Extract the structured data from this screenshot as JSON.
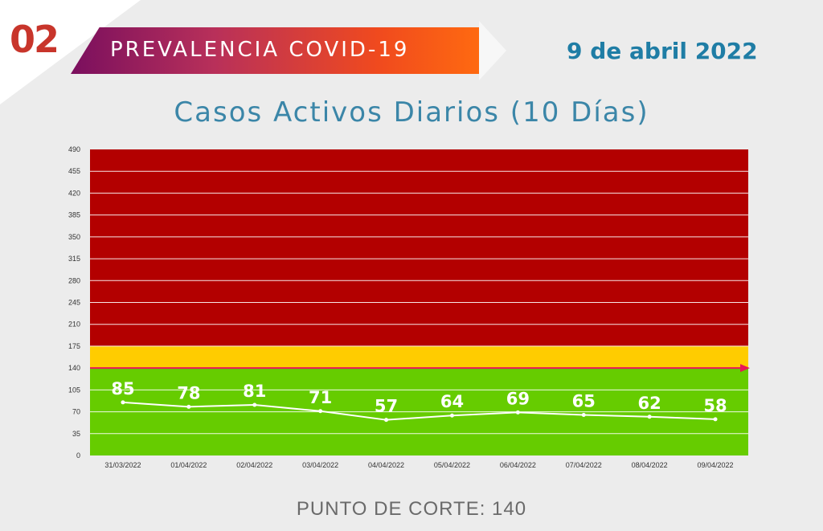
{
  "header": {
    "section_number": "02",
    "section_title": "PREVALENCIA COVID-19",
    "date": "9 de abril 2022"
  },
  "colors": {
    "section_number": "#c8352b",
    "date": "#1f7da5",
    "title": "#3b86a8",
    "red_zone": "#b30000",
    "yellow_zone": "#ffcc00",
    "green_zone": "#66cc00",
    "cutoff_line": "#e8155a",
    "series_line": "#ffffff",
    "footer_text": "#6a6a6a"
  },
  "chart_data": {
    "type": "line",
    "title": "Casos Activos Diarios (10 Días)",
    "xlabel": "",
    "ylabel": "",
    "ylim": [
      0,
      490
    ],
    "yticks": [
      0,
      35,
      70,
      105,
      140,
      175,
      210,
      245,
      280,
      315,
      350,
      385,
      420,
      455,
      490
    ],
    "categories": [
      "31/03/2022",
      "01/04/2022",
      "02/04/2022",
      "03/04/2022",
      "04/04/2022",
      "05/04/2022",
      "06/04/2022",
      "07/04/2022",
      "08/04/2022",
      "09/04/2022"
    ],
    "series": [
      {
        "values": [
          85,
          78,
          81,
          71,
          57,
          64,
          69,
          65,
          62,
          58
        ]
      }
    ],
    "zones": [
      {
        "color": "green",
        "from": 0,
        "to": 140
      },
      {
        "color": "yellow",
        "from": 140,
        "to": 175
      },
      {
        "color": "red",
        "from": 175,
        "to": 490
      }
    ],
    "cutoff": 140,
    "grid": true,
    "legend": "none"
  },
  "footer": {
    "cutoff_label": "PUNTO DE CORTE: 140"
  }
}
